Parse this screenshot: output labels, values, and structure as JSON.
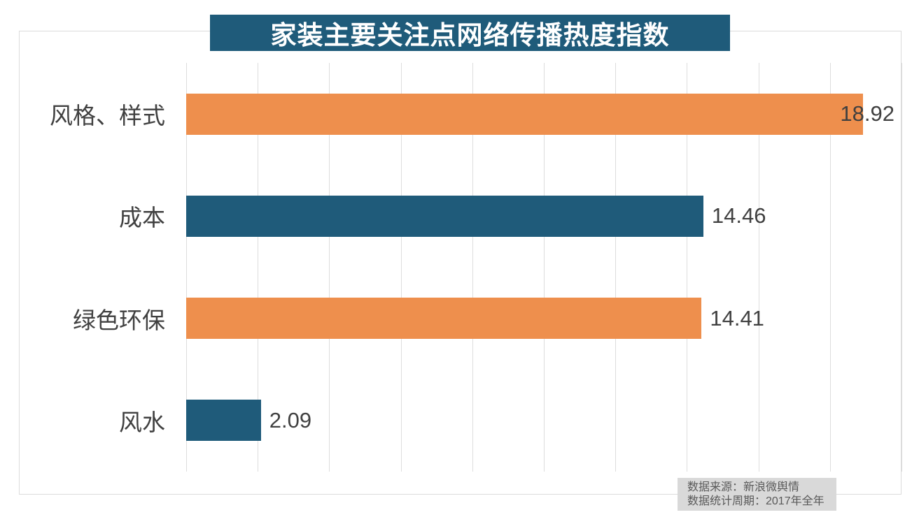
{
  "title": "家装主要关注点网络传播热度指数",
  "colors": {
    "teal": "#1F5B7A",
    "orange": "#EE8F4D",
    "gridline": "#DDDDDD",
    "frame": "#DCDCDC",
    "label_text": "#404040",
    "title_text": "#FFFFFF",
    "source_bg": "#D9D9D9",
    "source_text": "#595959"
  },
  "chart_data": {
    "type": "bar",
    "orientation": "horizontal",
    "title": "家装主要关注点网络传播热度指数",
    "categories": [
      "风格、样式",
      "成本",
      "绿色环保",
      "风水"
    ],
    "values": [
      18.92,
      14.46,
      14.41,
      2.09
    ],
    "value_labels": [
      "18.92",
      "14.46",
      "14.41",
      "2.09"
    ],
    "bar_colors": [
      "#EE8F4D",
      "#1F5B7A",
      "#EE8F4D",
      "#1F5B7A"
    ],
    "xlim": [
      0,
      20
    ],
    "grid_step": 2,
    "grid": true,
    "tick_labels_shown": false,
    "legend_position": "none"
  },
  "source_note": {
    "line1": "数据来源：新浪微舆情",
    "line2": "数据统计周期：2017年全年"
  }
}
